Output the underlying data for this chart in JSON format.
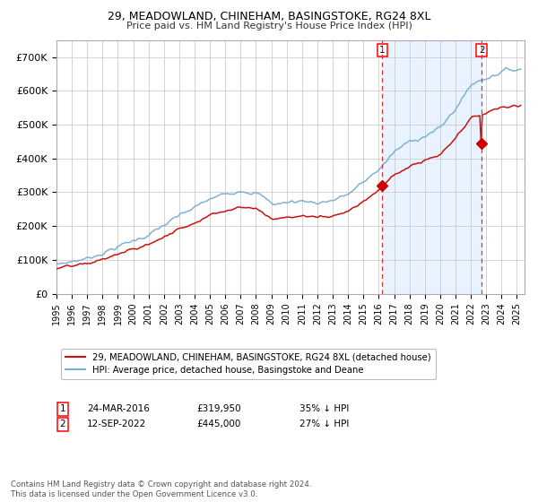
{
  "title": "29, MEADOWLAND, CHINEHAM, BASINGSTOKE, RG24 8XL",
  "subtitle": "Price paid vs. HM Land Registry's House Price Index (HPI)",
  "ylim": [
    0,
    750000
  ],
  "yticks": [
    0,
    100000,
    200000,
    300000,
    400000,
    500000,
    600000,
    700000
  ],
  "ytick_labels": [
    "£0",
    "£100K",
    "£200K",
    "£300K",
    "£400K",
    "£500K",
    "£600K",
    "£700K"
  ],
  "hpi_color": "#7aadd4",
  "price_color": "#cc1111",
  "marker_color": "#cc0000",
  "bg_fill_color": "#ddeeff",
  "vline_color": "#dd3333",
  "grid_color": "#cccccc",
  "purchase1_date": 2016.22,
  "purchase1_price": 319950,
  "purchase2_date": 2022.7,
  "purchase2_price": 445000,
  "legend_line1": "29, MEADOWLAND, CHINEHAM, BASINGSTOKE, RG24 8XL (detached house)",
  "legend_line2": "HPI: Average price, detached house, Basingstoke and Deane",
  "footnote": "Contains HM Land Registry data © Crown copyright and database right 2024.\nThis data is licensed under the Open Government Licence v3.0.",
  "start_year": 1995,
  "end_year": 2025
}
